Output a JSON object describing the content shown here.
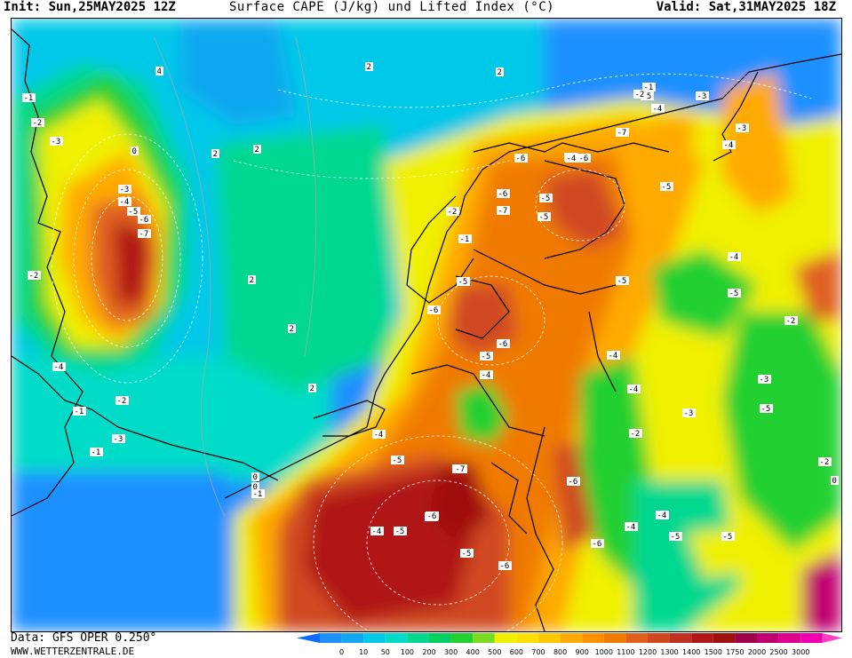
{
  "header": {
    "init": "Init: Sun,25MAY2025 12Z",
    "title": "Surface CAPE (J/kg) und Lifted Index (°C)",
    "valid": "Valid: Sat,31MAY2025 18Z"
  },
  "footer": {
    "data": "Data: GFS OPER 0.250°",
    "site": "WWW.WETTERZENTRALE.DE"
  },
  "legend": {
    "ticks": [
      "0",
      "10",
      "50",
      "100",
      "200",
      "300",
      "400",
      "500",
      "600",
      "700",
      "800",
      "900",
      "1000",
      "1100",
      "1200",
      "1300",
      "1400",
      "1500",
      "1750",
      "2000",
      "2500",
      "3000"
    ],
    "colors": [
      "#1e90ff",
      "#11a8f0",
      "#00c8e8",
      "#00dcc8",
      "#00d890",
      "#00d060",
      "#22d030",
      "#7adc20",
      "#f0f000",
      "#ffe000",
      "#ffc800",
      "#ffaa00",
      "#ff9000",
      "#f07a00",
      "#e06020",
      "#d04820",
      "#c03020",
      "#b01818",
      "#a01010",
      "#a0004a",
      "#c00070",
      "#e00090",
      "#f000b0"
    ],
    "arrow_left_color": "#0a6cff",
    "arrow_right_color": "#ff40c0"
  },
  "map_labels": [
    {
      "t": "4"
    },
    {
      "t": "2"
    },
    {
      "t": "2"
    },
    {
      "t": "-1"
    },
    {
      "t": "-2"
    },
    {
      "t": "-3"
    },
    {
      "t": "0"
    },
    {
      "t": "-3"
    },
    {
      "t": "-4"
    },
    {
      "t": "-5"
    },
    {
      "t": "-6"
    },
    {
      "t": "-7"
    },
    {
      "t": "2"
    },
    {
      "t": "2"
    },
    {
      "t": "-2"
    },
    {
      "t": "2"
    },
    {
      "t": "2"
    },
    {
      "t": "-4"
    },
    {
      "t": "-1"
    },
    {
      "t": "-2"
    },
    {
      "t": "-3"
    },
    {
      "t": "-1"
    },
    {
      "t": "0"
    },
    {
      "t": "2"
    },
    {
      "t": "0"
    },
    {
      "t": "-1"
    },
    {
      "t": "-4"
    },
    {
      "t": "-5"
    },
    {
      "t": "-4"
    },
    {
      "t": "-5"
    },
    {
      "t": "-6"
    },
    {
      "t": "-5"
    },
    {
      "t": "-6"
    },
    {
      "t": "-6"
    },
    {
      "t": "-6"
    },
    {
      "t": "-5"
    },
    {
      "t": "-7"
    },
    {
      "t": "-5"
    },
    {
      "t": "-2"
    },
    {
      "t": "-1"
    },
    {
      "t": "-5"
    },
    {
      "t": "-6"
    },
    {
      "t": "-6"
    },
    {
      "t": "-5"
    },
    {
      "t": "-4"
    },
    {
      "t": "-4"
    },
    {
      "t": "-5"
    },
    {
      "t": "-4"
    },
    {
      "t": "-5"
    },
    {
      "t": "-2"
    },
    {
      "t": "-3"
    },
    {
      "t": "-5"
    },
    {
      "t": "-3"
    },
    {
      "t": "-2"
    },
    {
      "t": "-4"
    },
    {
      "t": "-5"
    },
    {
      "t": "-4"
    },
    {
      "t": "-6"
    },
    {
      "t": "-7"
    },
    {
      "t": "-6"
    },
    {
      "t": "-5"
    },
    {
      "t": "-6"
    },
    {
      "t": "-4"
    },
    {
      "t": "-5"
    },
    {
      "t": "-4"
    },
    {
      "t": "-5"
    },
    {
      "t": "-3"
    },
    {
      "t": "-4"
    },
    {
      "t": "-5"
    },
    {
      "t": "-7"
    },
    {
      "t": "-6"
    },
    {
      "t": "-5"
    },
    {
      "t": "-4"
    },
    {
      "t": "-3"
    },
    {
      "t": "-2"
    },
    {
      "t": "0"
    },
    {
      "t": "-1"
    },
    {
      "t": "-2"
    }
  ]
}
